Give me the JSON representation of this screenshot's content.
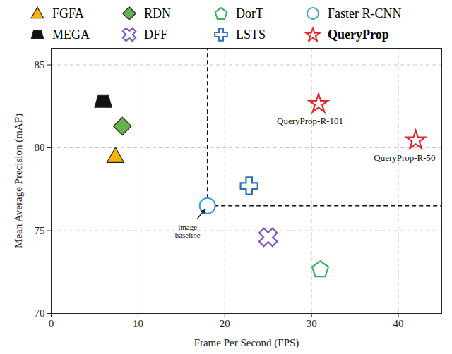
{
  "chart_data": {
    "type": "scatter",
    "xlabel": "Frame Per Second (FPS)",
    "ylabel": "Mean Average Precision (mAP)",
    "xlim": [
      0,
      45
    ],
    "ylim": [
      70,
      86
    ],
    "xticks": [
      0,
      10,
      20,
      30,
      40
    ],
    "yticks": [
      70,
      75,
      80,
      85
    ],
    "grid": true,
    "legend": "top",
    "series": [
      {
        "name": "FGFA",
        "color": "#f4b400",
        "marker": "triangle",
        "x": [
          7.4
        ],
        "y": [
          79.5
        ]
      },
      {
        "name": "RDN",
        "color": "#6ab04c",
        "marker": "diamond",
        "x": [
          8.2
        ],
        "y": [
          81.3
        ]
      },
      {
        "name": "DorT",
        "color": "#3fae62",
        "marker": "open-pentagon",
        "x": [
          31.0
        ],
        "y": [
          72.7
        ]
      },
      {
        "name": "Faster R-CNN",
        "color": "#3aa3dc",
        "marker": "open-circle",
        "line_style": "dashed",
        "x": [
          18.0
        ],
        "y": [
          76.5
        ]
      },
      {
        "name": "MEGA",
        "color": "#111111",
        "marker": "trapezoid",
        "x": [
          6.0
        ],
        "y": [
          82.8
        ]
      },
      {
        "name": "DFF",
        "color": "#7e57c2",
        "marker": "open-x",
        "x": [
          25.0
        ],
        "y": [
          74.6
        ]
      },
      {
        "name": "LSTS",
        "color": "#2f6fb5",
        "marker": "open-plus",
        "x": [
          22.8
        ],
        "y": [
          77.7
        ]
      },
      {
        "name": "QueryProp",
        "color": "#e8262a",
        "marker": "open-star",
        "x": [
          30.8,
          42.0
        ],
        "y": [
          82.7,
          80.5
        ]
      }
    ],
    "annotations": [
      {
        "text": "QueryProp-R-101",
        "series": "QueryProp",
        "index": 0
      },
      {
        "text": "QueryProp-R-50",
        "series": "QueryProp",
        "index": 1
      },
      {
        "text": "image\nbaseline",
        "series": "Faster R-CNN",
        "index": 0
      }
    ]
  }
}
